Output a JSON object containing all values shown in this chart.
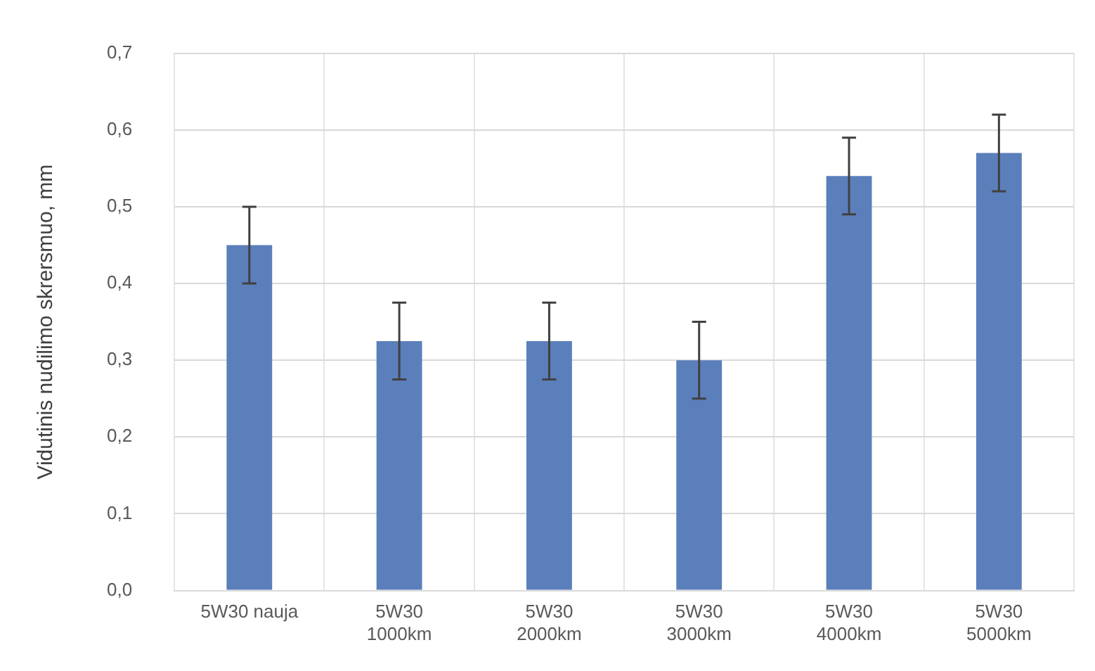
{
  "chart_data": {
    "type": "bar",
    "ylabel": "Vidutinis nudilimo skrersmuo, mm",
    "categories": [
      "5W30 nauja",
      "5W30\n1000km",
      "5W30\n2000km",
      "5W30\n3000km",
      "5W30\n4000km",
      "5W30\n5000km"
    ],
    "values": [
      0.45,
      0.325,
      0.325,
      0.3,
      0.54,
      0.57
    ],
    "errors": [
      0.05,
      0.05,
      0.05,
      0.05,
      0.05,
      0.05
    ],
    "color": "#5b7fbb",
    "ylim": [
      0,
      0.7
    ],
    "yticks": [
      {
        "value": 0,
        "label": "0,0"
      },
      {
        "value": 0.1,
        "label": "0,1"
      },
      {
        "value": 0.2,
        "label": "0,2"
      },
      {
        "value": 0.3,
        "label": "0,3"
      },
      {
        "value": 0.4,
        "label": "0,4"
      },
      {
        "value": 0.5,
        "label": "0,5"
      },
      {
        "value": 0.6,
        "label": "0,6"
      },
      {
        "value": 0.7,
        "label": "0,7"
      }
    ],
    "grid": true
  }
}
